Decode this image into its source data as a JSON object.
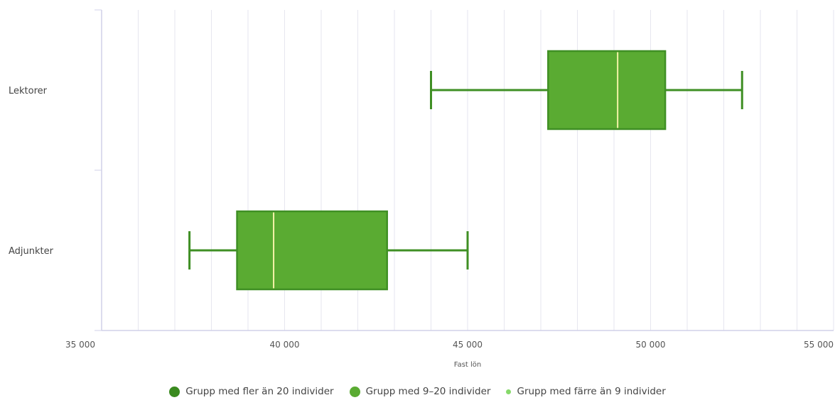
{
  "chart_data": {
    "type": "boxplot",
    "orientation": "horizontal",
    "categories": [
      "Lektorer",
      "Adjunkter"
    ],
    "boxes": [
      {
        "category": "Lektorer",
        "min": 44000,
        "q1": 47200,
        "median": 49100,
        "q3": 50400,
        "max": 52500,
        "group": "Grupp med 9–20 individer"
      },
      {
        "category": "Adjunkter",
        "min": 37400,
        "q1": 38700,
        "median": 39700,
        "q3": 42800,
        "max": 45000,
        "group": "Grupp med 9–20 individer"
      }
    ],
    "xlabel": "Fast lön",
    "xlim": [
      35000,
      55000
    ],
    "x_ticks": [
      35000,
      40000,
      45000,
      50000,
      55000
    ],
    "x_tick_labels": [
      "35 000",
      "40 000",
      "45 000",
      "50 000",
      "55 000"
    ],
    "grid": true,
    "legend_position": "bottom",
    "legend": [
      {
        "label": "Grupp med fler än 20 individer",
        "color": "#3a8a1f"
      },
      {
        "label": "Grupp med 9–20 individer",
        "color": "#5aab32"
      },
      {
        "label": "Grupp med färre än 9 individer",
        "color": "#86d96a"
      }
    ],
    "colors": {
      "box_fill": "#5aab32",
      "box_stroke": "#3f8f24",
      "median": "#f4f2a8",
      "grid": "#e6e6ef",
      "axis": "#d0d0e8"
    }
  }
}
